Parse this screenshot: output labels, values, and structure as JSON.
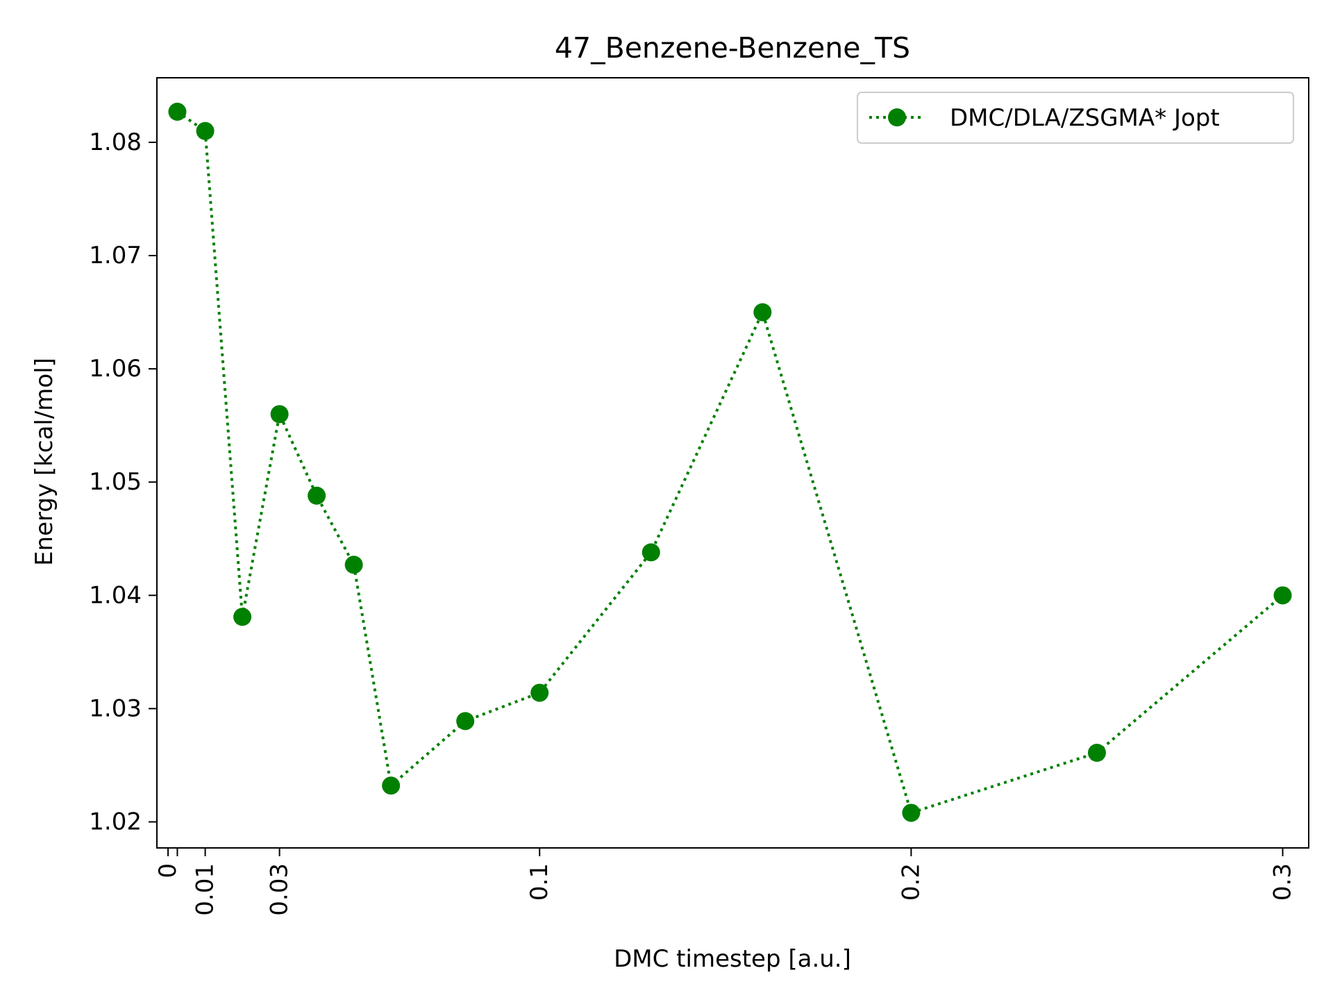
{
  "chart_data": {
    "type": "line",
    "title": "47_Benzene-Benzene_TS",
    "xlabel": "DMC timestep [a.u.]",
    "ylabel": "Energy [kcal/mol]",
    "xlim": [
      -0.003,
      0.307
    ],
    "ylim": [
      1.0177,
      1.0857
    ],
    "x_ticks": [
      0,
      0.0025,
      0.01,
      0.03,
      0.1,
      0.2,
      0.3
    ],
    "x_tick_labels": [
      "0",
      "",
      "0.01",
      "0.03",
      "0.1",
      "0.2",
      "0.3"
    ],
    "y_ticks": [
      1.02,
      1.03,
      1.04,
      1.05,
      1.06,
      1.07,
      1.08
    ],
    "y_tick_labels": [
      "1.02",
      "1.03",
      "1.04",
      "1.05",
      "1.06",
      "1.07",
      "1.08"
    ],
    "grid": false,
    "legend_position": "top-right",
    "series": [
      {
        "name": "DMC/DLA/ZSGMA* Jopt",
        "color": "#008000",
        "line_style": "dotted",
        "marker": "circle",
        "x": [
          0.0025,
          0.01,
          0.02,
          0.03,
          0.04,
          0.05,
          0.06,
          0.08,
          0.1,
          0.13,
          0.16,
          0.2,
          0.25,
          0.3
        ],
        "y": [
          1.0827,
          1.081,
          1.0381,
          1.056,
          1.0488,
          1.0427,
          1.0232,
          1.0289,
          1.0314,
          1.0438,
          1.065,
          1.0208,
          1.0261,
          1.04
        ]
      }
    ]
  }
}
